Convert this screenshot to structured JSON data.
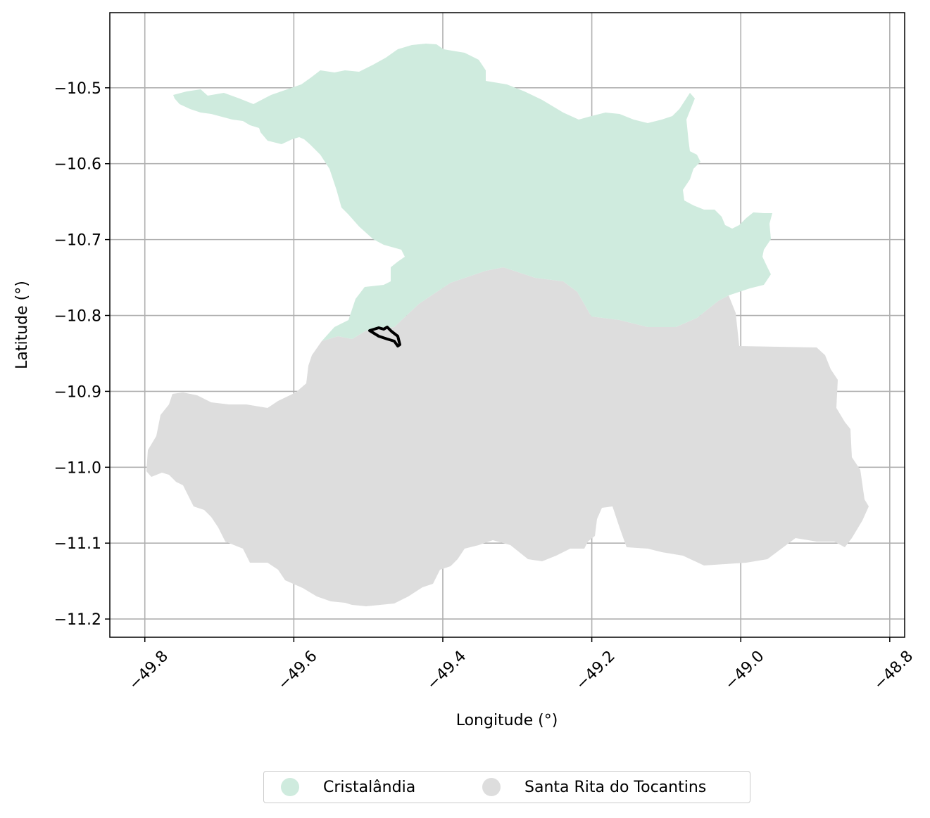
{
  "map": {
    "xlabel": "Longitude (°)",
    "ylabel": "Latitude (°)",
    "x_ticks": [
      "−49.8",
      "−49.6",
      "−49.4",
      "−49.2",
      "−49.0",
      "−48.8"
    ],
    "y_ticks": [
      "−10.5",
      "−10.6",
      "−10.7",
      "−10.8",
      "−10.9",
      "−11.0",
      "−11.1",
      "−11.2"
    ],
    "x_tick_values": [
      -49.8,
      -49.6,
      -49.4,
      -49.2,
      -49.0,
      -48.8
    ],
    "y_tick_values": [
      -10.5,
      -10.6,
      -10.7,
      -10.8,
      -10.9,
      -11.0,
      -11.1,
      -11.2
    ],
    "xlim": [
      -49.847,
      -48.78
    ],
    "ylim": [
      -11.224,
      -10.401
    ],
    "grid": true,
    "legend_position": "bottom-center"
  },
  "regions": [
    {
      "name": "Cristalândia",
      "color": "#cfebde"
    },
    {
      "name": "Santa Rita do Tocantins",
      "color": "#dddddd"
    }
  ],
  "highlight": {
    "color": "#000000"
  },
  "legend": {
    "items": [
      {
        "label": "Cristalândia",
        "color": "#cfebde"
      },
      {
        "label": "Santa Rita do Tocantins",
        "color": "#dddddd"
      }
    ]
  }
}
